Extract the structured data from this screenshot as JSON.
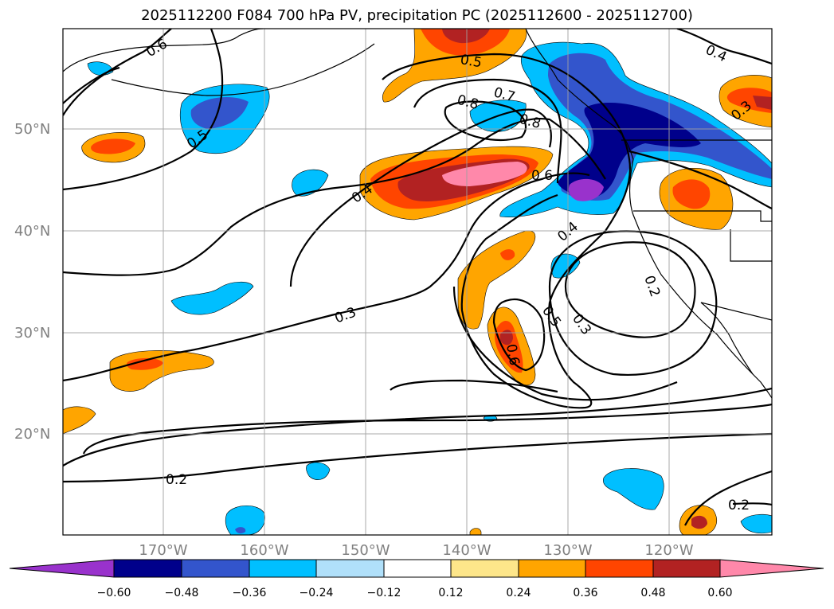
{
  "title": "2025112200 F084 700 hPa PV, precipitation PC (2025112600 - 2025112700)",
  "lat_labels": [
    "50°N",
    "40°N",
    "30°N",
    "20°N"
  ],
  "lon_labels": [
    "170°W",
    "160°W",
    "150°W",
    "140°W",
    "130°W",
    "120°W"
  ],
  "colorbar": {
    "ticks": [
      "−0.60",
      "−0.48",
      "−0.36",
      "−0.24",
      "−0.12",
      "0.12",
      "0.24",
      "0.36",
      "0.48",
      "0.60"
    ],
    "colors": [
      "#9932cc",
      "#00008b",
      "#3355cc",
      "#00bfff",
      "#b0e0fa",
      "#ffffff",
      "#fde68a",
      "#ffa500",
      "#ff4500",
      "#b22222",
      "#ff88aa"
    ]
  },
  "contour_labels": [
    "0.6",
    "0.5",
    "0.5",
    "0.8",
    "0.7",
    "0.8",
    "0.4",
    "0.6",
    "0.4",
    "0.3",
    "0.2",
    "0.3",
    "0.5",
    "0.6",
    "0.2",
    "0.2",
    "0.4",
    "0.3"
  ]
}
